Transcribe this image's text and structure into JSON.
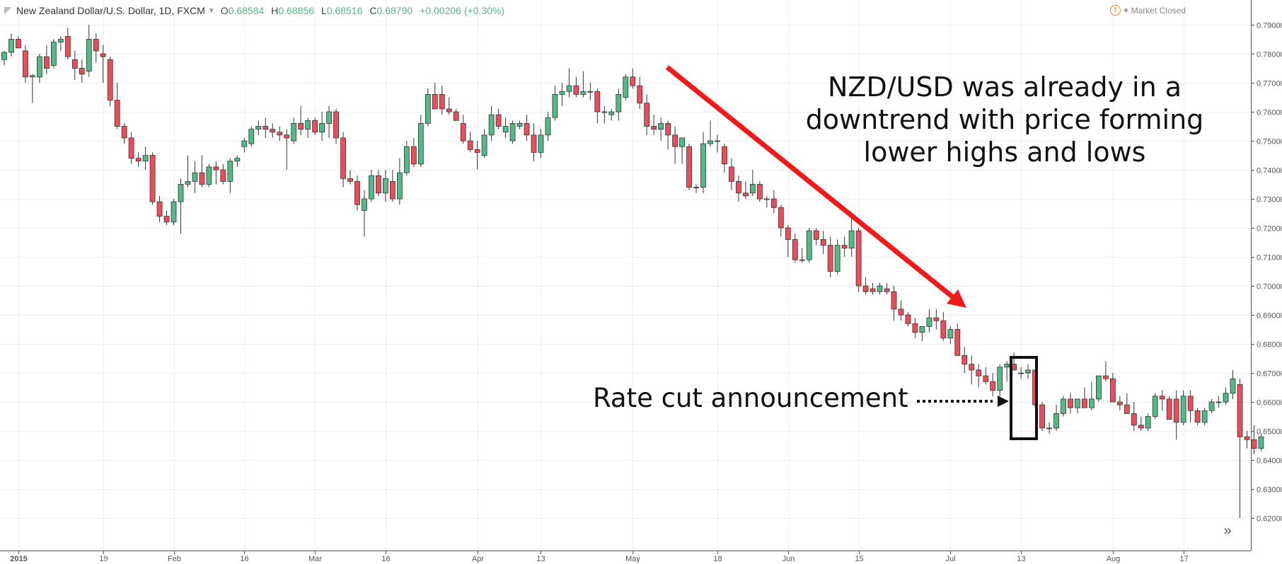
{
  "header": {
    "symbol": "New Zealand Dollar/U.S. Dollar, 1D, FXCM",
    "o_label": "O",
    "o_value": "0.68584",
    "h_label": "H",
    "h_value": "0.68856",
    "l_label": "L",
    "l_value": "0.68516",
    "c_label": "C",
    "c_value": "0.68790",
    "change": "+0.00206 (+0.30%)"
  },
  "status": {
    "label": "Market Closed",
    "icon": "warning-icon"
  },
  "annotations": {
    "downtrend_lines": [
      "NZD/USD was already in a",
      "downtrend with price forming",
      "lower highs and lows"
    ],
    "rate_cut": "Rate cut announcement"
  },
  "colors": {
    "up": "#53b987",
    "down": "#eb4d5c",
    "candle_border": "#333333",
    "arrow": "#f01a1a",
    "grid": "#eeeeee"
  },
  "chart_data": {
    "type": "candlestick",
    "title": "New Zealand Dollar/U.S. Dollar, 1D, FXCM",
    "y_ticks": [
      "0.79000",
      "0.78000",
      "0.77000",
      "0.76000",
      "0.75000",
      "0.74000",
      "0.73000",
      "0.72000",
      "0.71000",
      "0.70000",
      "0.69000",
      "0.68000",
      "0.67000",
      "0.66000",
      "0.65000",
      "0.64000",
      "0.63000",
      "0.62000"
    ],
    "ylim": [
      0.6175,
      0.7925
    ],
    "x_ticks": [
      "2015",
      "19",
      "Feb",
      "16",
      "Mar",
      "16",
      "Apr",
      "13",
      "May",
      "18",
      "Jun",
      "15",
      "Jul",
      "13",
      "Aug",
      "17"
    ],
    "grid": true,
    "candles": [
      [
        0.778,
        0.781,
        0.776,
        0.7805
      ],
      [
        0.7805,
        0.787,
        0.779,
        0.785
      ],
      [
        0.785,
        0.786,
        0.782,
        0.782
      ],
      [
        0.781,
        0.783,
        0.77,
        0.772
      ],
      [
        0.772,
        0.773,
        0.763,
        0.7725
      ],
      [
        0.772,
        0.78,
        0.77,
        0.779
      ],
      [
        0.779,
        0.783,
        0.773,
        0.775
      ],
      [
        0.776,
        0.785,
        0.775,
        0.784
      ],
      [
        0.784,
        0.786,
        0.781,
        0.785
      ],
      [
        0.786,
        0.789,
        0.778,
        0.779
      ],
      [
        0.778,
        0.781,
        0.771,
        0.775
      ],
      [
        0.775,
        0.778,
        0.77,
        0.773
      ],
      [
        0.774,
        0.79,
        0.772,
        0.785
      ],
      [
        0.785,
        0.787,
        0.777,
        0.781
      ],
      [
        0.78,
        0.783,
        0.77,
        0.779
      ],
      [
        0.778,
        0.779,
        0.762,
        0.764
      ],
      [
        0.764,
        0.77,
        0.754,
        0.755
      ],
      [
        0.755,
        0.756,
        0.749,
        0.751
      ],
      [
        0.751,
        0.753,
        0.742,
        0.744
      ],
      [
        0.744,
        0.746,
        0.741,
        0.743
      ],
      [
        0.743,
        0.748,
        0.74,
        0.745
      ],
      [
        0.745,
        0.746,
        0.728,
        0.729
      ],
      [
        0.729,
        0.731,
        0.722,
        0.724
      ],
      [
        0.724,
        0.726,
        0.721,
        0.722
      ],
      [
        0.722,
        0.73,
        0.721,
        0.729
      ],
      [
        0.729,
        0.737,
        0.718,
        0.735
      ],
      [
        0.735,
        0.745,
        0.734,
        0.736
      ],
      [
        0.736,
        0.743,
        0.732,
        0.739
      ],
      [
        0.739,
        0.745,
        0.734,
        0.735
      ],
      [
        0.735,
        0.742,
        0.734,
        0.741
      ],
      [
        0.741,
        0.743,
        0.735,
        0.74
      ],
      [
        0.74,
        0.742,
        0.735,
        0.736
      ],
      [
        0.736,
        0.744,
        0.732,
        0.743
      ],
      [
        0.743,
        0.745,
        0.741,
        0.744
      ],
      [
        0.748,
        0.751,
        0.746,
        0.75
      ],
      [
        0.749,
        0.755,
        0.748,
        0.754
      ],
      [
        0.754,
        0.757,
        0.752,
        0.755
      ],
      [
        0.755,
        0.758,
        0.751,
        0.754
      ],
      [
        0.754,
        0.756,
        0.751,
        0.753
      ],
      [
        0.753,
        0.755,
        0.75,
        0.752
      ],
      [
        0.752,
        0.754,
        0.74,
        0.751
      ],
      [
        0.75,
        0.758,
        0.749,
        0.756
      ],
      [
        0.756,
        0.762,
        0.752,
        0.754
      ],
      [
        0.754,
        0.758,
        0.751,
        0.757
      ],
      [
        0.757,
        0.758,
        0.752,
        0.753
      ],
      [
        0.753,
        0.76,
        0.75,
        0.756
      ],
      [
        0.756,
        0.762,
        0.751,
        0.76
      ],
      [
        0.76,
        0.761,
        0.749,
        0.751
      ],
      [
        0.751,
        0.753,
        0.734,
        0.737
      ],
      [
        0.737,
        0.74,
        0.735,
        0.736
      ],
      [
        0.736,
        0.738,
        0.726,
        0.728
      ],
      [
        0.726,
        0.733,
        0.717,
        0.73
      ],
      [
        0.73,
        0.74,
        0.729,
        0.738
      ],
      [
        0.738,
        0.74,
        0.731,
        0.732
      ],
      [
        0.732,
        0.74,
        0.729,
        0.737
      ],
      [
        0.736,
        0.74,
        0.729,
        0.73
      ],
      [
        0.73,
        0.744,
        0.728,
        0.739
      ],
      [
        0.739,
        0.75,
        0.738,
        0.748
      ],
      [
        0.748,
        0.751,
        0.741,
        0.742
      ],
      [
        0.742,
        0.759,
        0.741,
        0.756
      ],
      [
        0.756,
        0.768,
        0.755,
        0.766
      ],
      [
        0.766,
        0.77,
        0.761,
        0.761
      ],
      [
        0.766,
        0.769,
        0.759,
        0.761
      ],
      [
        0.761,
        0.765,
        0.759,
        0.76
      ],
      [
        0.76,
        0.761,
        0.757,
        0.757
      ],
      [
        0.756,
        0.759,
        0.749,
        0.75
      ],
      [
        0.75,
        0.753,
        0.746,
        0.747
      ],
      [
        0.747,
        0.75,
        0.74,
        0.746
      ],
      [
        0.745,
        0.754,
        0.744,
        0.752
      ],
      [
        0.752,
        0.762,
        0.75,
        0.759
      ],
      [
        0.759,
        0.761,
        0.754,
        0.755
      ],
      [
        0.753,
        0.758,
        0.751,
        0.755
      ],
      [
        0.75,
        0.757,
        0.749,
        0.756
      ],
      [
        0.755,
        0.757,
        0.754,
        0.756
      ],
      [
        0.756,
        0.759,
        0.75,
        0.752
      ],
      [
        0.752,
        0.756,
        0.743,
        0.746
      ],
      [
        0.746,
        0.754,
        0.744,
        0.752
      ],
      [
        0.752,
        0.76,
        0.75,
        0.758
      ],
      [
        0.758,
        0.769,
        0.757,
        0.766
      ],
      [
        0.766,
        0.77,
        0.762,
        0.767
      ],
      [
        0.767,
        0.775,
        0.765,
        0.769
      ],
      [
        0.769,
        0.772,
        0.765,
        0.766
      ],
      [
        0.766,
        0.774,
        0.765,
        0.767
      ],
      [
        0.767,
        0.77,
        0.764,
        0.767
      ],
      [
        0.767,
        0.768,
        0.756,
        0.76
      ],
      [
        0.76,
        0.762,
        0.756,
        0.76
      ],
      [
        0.759,
        0.761,
        0.757,
        0.76
      ],
      [
        0.76,
        0.768,
        0.757,
        0.766
      ],
      [
        0.765,
        0.773,
        0.764,
        0.772
      ],
      [
        0.772,
        0.775,
        0.768,
        0.769
      ],
      [
        0.769,
        0.772,
        0.761,
        0.763
      ],
      [
        0.763,
        0.766,
        0.752,
        0.755
      ],
      [
        0.755,
        0.759,
        0.752,
        0.754
      ],
      [
        0.754,
        0.758,
        0.75,
        0.756
      ],
      [
        0.756,
        0.757,
        0.747,
        0.752
      ],
      [
        0.752,
        0.755,
        0.742,
        0.748
      ],
      [
        0.748,
        0.751,
        0.742,
        0.751
      ],
      [
        0.748,
        0.749,
        0.733,
        0.734
      ],
      [
        0.734,
        0.735,
        0.732,
        0.734
      ],
      [
        0.734,
        0.753,
        0.732,
        0.749
      ],
      [
        0.749,
        0.757,
        0.748,
        0.75
      ],
      [
        0.75,
        0.752,
        0.746,
        0.75
      ],
      [
        0.748,
        0.749,
        0.739,
        0.742
      ],
      [
        0.741,
        0.744,
        0.733,
        0.736
      ],
      [
        0.736,
        0.738,
        0.729,
        0.732
      ],
      [
        0.732,
        0.736,
        0.73,
        0.731
      ],
      [
        0.732,
        0.74,
        0.731,
        0.735
      ],
      [
        0.735,
        0.736,
        0.729,
        0.73
      ],
      [
        0.73,
        0.731,
        0.727,
        0.73
      ],
      [
        0.73,
        0.733,
        0.725,
        0.727
      ],
      [
        0.727,
        0.728,
        0.717,
        0.72
      ],
      [
        0.72,
        0.721,
        0.71,
        0.716
      ],
      [
        0.716,
        0.718,
        0.708,
        0.709
      ],
      [
        0.709,
        0.713,
        0.708,
        0.709
      ],
      [
        0.709,
        0.72,
        0.708,
        0.719
      ],
      [
        0.719,
        0.72,
        0.714,
        0.716
      ],
      [
        0.716,
        0.719,
        0.711,
        0.714
      ],
      [
        0.714,
        0.717,
        0.703,
        0.705
      ],
      [
        0.705,
        0.716,
        0.704,
        0.714
      ],
      [
        0.714,
        0.717,
        0.71,
        0.713
      ],
      [
        0.713,
        0.724,
        0.71,
        0.719
      ],
      [
        0.719,
        0.72,
        0.698,
        0.7
      ],
      [
        0.7,
        0.703,
        0.697,
        0.698
      ],
      [
        0.699,
        0.701,
        0.697,
        0.698
      ],
      [
        0.698,
        0.701,
        0.697,
        0.7
      ],
      [
        0.699,
        0.701,
        0.697,
        0.698
      ],
      [
        0.698,
        0.7,
        0.688,
        0.692
      ],
      [
        0.692,
        0.695,
        0.688,
        0.69
      ],
      [
        0.69,
        0.691,
        0.686,
        0.687
      ],
      [
        0.687,
        0.689,
        0.682,
        0.684
      ],
      [
        0.684,
        0.686,
        0.681,
        0.686
      ],
      [
        0.686,
        0.692,
        0.684,
        0.689
      ],
      [
        0.689,
        0.692,
        0.685,
        0.688
      ],
      [
        0.688,
        0.691,
        0.681,
        0.682
      ],
      [
        0.682,
        0.686,
        0.68,
        0.685
      ],
      [
        0.685,
        0.687,
        0.676,
        0.676
      ],
      [
        0.676,
        0.679,
        0.67,
        0.673
      ],
      [
        0.673,
        0.676,
        0.666,
        0.671
      ],
      [
        0.671,
        0.673,
        0.665,
        0.669
      ],
      [
        0.669,
        0.672,
        0.666,
        0.667
      ],
      [
        0.667,
        0.67,
        0.662,
        0.664
      ],
      [
        0.664,
        0.673,
        0.662,
        0.672
      ],
      [
        0.672,
        0.674,
        0.667,
        0.673
      ],
      [
        0.673,
        0.677,
        0.671,
        0.671
      ],
      [
        0.67,
        0.672,
        0.668,
        0.67
      ],
      [
        0.67,
        0.673,
        0.668,
        0.671
      ],
      [
        0.671,
        0.671,
        0.658,
        0.659
      ],
      [
        0.659,
        0.66,
        0.65,
        0.651
      ],
      [
        0.651,
        0.653,
        0.649,
        0.651
      ],
      [
        0.651,
        0.659,
        0.65,
        0.656
      ],
      [
        0.656,
        0.662,
        0.655,
        0.661
      ],
      [
        0.661,
        0.663,
        0.656,
        0.658
      ],
      [
        0.658,
        0.661,
        0.656,
        0.661
      ],
      [
        0.661,
        0.665,
        0.658,
        0.658
      ],
      [
        0.658,
        0.667,
        0.657,
        0.661
      ],
      [
        0.661,
        0.669,
        0.66,
        0.669
      ],
      [
        0.669,
        0.674,
        0.667,
        0.668
      ],
      [
        0.668,
        0.67,
        0.66,
        0.66
      ],
      [
        0.66,
        0.662,
        0.657,
        0.659
      ],
      [
        0.659,
        0.663,
        0.656,
        0.656
      ],
      [
        0.656,
        0.66,
        0.65,
        0.652
      ],
      [
        0.652,
        0.655,
        0.65,
        0.651
      ],
      [
        0.651,
        0.656,
        0.65,
        0.655
      ],
      [
        0.655,
        0.663,
        0.654,
        0.662
      ],
      [
        0.662,
        0.664,
        0.657,
        0.661
      ],
      [
        0.661,
        0.662,
        0.654,
        0.654
      ],
      [
        0.661,
        0.664,
        0.647,
        0.653
      ],
      [
        0.653,
        0.664,
        0.652,
        0.662
      ],
      [
        0.662,
        0.664,
        0.653,
        0.657
      ],
      [
        0.657,
        0.658,
        0.652,
        0.653
      ],
      [
        0.653,
        0.658,
        0.652,
        0.657
      ],
      [
        0.657,
        0.661,
        0.656,
        0.66
      ],
      [
        0.66,
        0.662,
        0.658,
        0.66
      ],
      [
        0.66,
        0.665,
        0.659,
        0.663
      ],
      [
        0.663,
        0.671,
        0.661,
        0.668
      ],
      [
        0.666,
        0.668,
        0.62,
        0.648
      ],
      [
        0.648,
        0.65,
        0.644,
        0.647
      ],
      [
        0.647,
        0.652,
        0.642,
        0.644
      ],
      [
        0.644,
        0.649,
        0.643,
        0.648
      ]
    ]
  }
}
